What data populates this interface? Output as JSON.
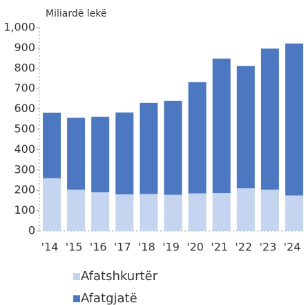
{
  "chart_data": {
    "type": "stacked_bar",
    "axis_label": "Miliardë lekë",
    "categories": [
      "'14",
      "'15",
      "'16",
      "'17",
      "'18",
      "'19",
      "'20",
      "'21",
      "'22",
      "'23",
      "'24"
    ],
    "series": [
      {
        "name": "Afatshkurtër",
        "color": "#c5d5ef",
        "values": [
          260,
          203,
          190,
          180,
          182,
          178,
          185,
          187,
          210,
          203,
          175
        ]
      },
      {
        "name": "Afatgjatë",
        "color": "#4b78c0",
        "values": [
          322,
          354,
          372,
          403,
          448,
          462,
          547,
          661,
          602,
          694,
          747
        ]
      }
    ],
    "ylim": [
      0,
      1000
    ],
    "yticks": [
      0,
      100,
      200,
      300,
      400,
      500,
      600,
      700,
      800,
      900,
      {
        "value": 1000,
        "label": "1,000"
      }
    ]
  }
}
